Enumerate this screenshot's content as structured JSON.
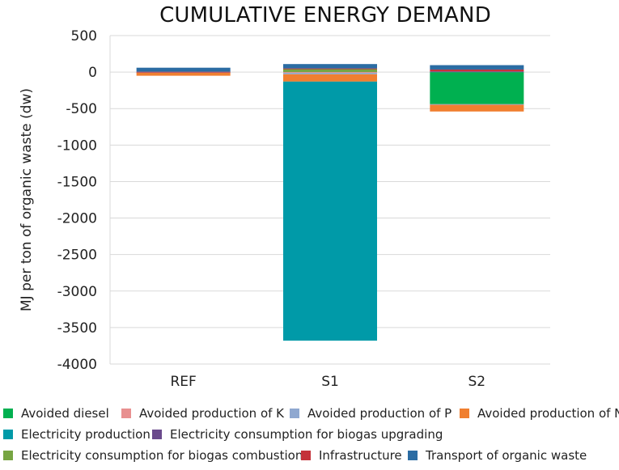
{
  "chart_data": {
    "type": "bar",
    "stacked": true,
    "title": "CUMULATIVE ENERGY DEMAND",
    "xlabel": "",
    "ylabel": "MJ per ton of organic waste (dw)",
    "ylim": [
      -4000,
      500
    ],
    "yticks": [
      "500",
      "0",
      "-500",
      "-1000",
      "-1500",
      "-2000",
      "-2500",
      "-3000",
      "-3500",
      "-4000"
    ],
    "ytick_values": [
      500,
      0,
      -500,
      -1000,
      -1500,
      -2000,
      -2500,
      -3000,
      -3500,
      -4000
    ],
    "categories": [
      "REF",
      "S1",
      "S2"
    ],
    "grid": true,
    "legend_position": "bottom",
    "series": [
      {
        "name": "Avoided diesel",
        "color": "#00b050",
        "values": [
          0,
          0,
          -440
        ]
      },
      {
        "name": "Avoided production of K",
        "color": "#e89090",
        "values": [
          -5,
          -10,
          -5
        ]
      },
      {
        "name": "Avoided production of P",
        "color": "#8fa8d0",
        "values": [
          -5,
          -20,
          -5
        ]
      },
      {
        "name": "Avoided production of N",
        "color": "#f07f30",
        "values": [
          -40,
          -100,
          -90
        ]
      },
      {
        "name": "Electricity production",
        "color": "#009aa8",
        "values": [
          0,
          -3550,
          0
        ]
      },
      {
        "name": "Electricity consumption for biogas upgrading",
        "color": "#6a4a8c",
        "values": [
          0,
          0,
          10
        ]
      },
      {
        "name": "Electricity consumption for biogas combustion",
        "color": "#77a542",
        "values": [
          0,
          45,
          0
        ]
      },
      {
        "name": "Infrastructure",
        "color": "#c4323a",
        "values": [
          5,
          5,
          25
        ]
      },
      {
        "name": "Transport of organic waste",
        "color": "#2b6ca3",
        "values": [
          55,
          60,
          60
        ]
      }
    ]
  }
}
